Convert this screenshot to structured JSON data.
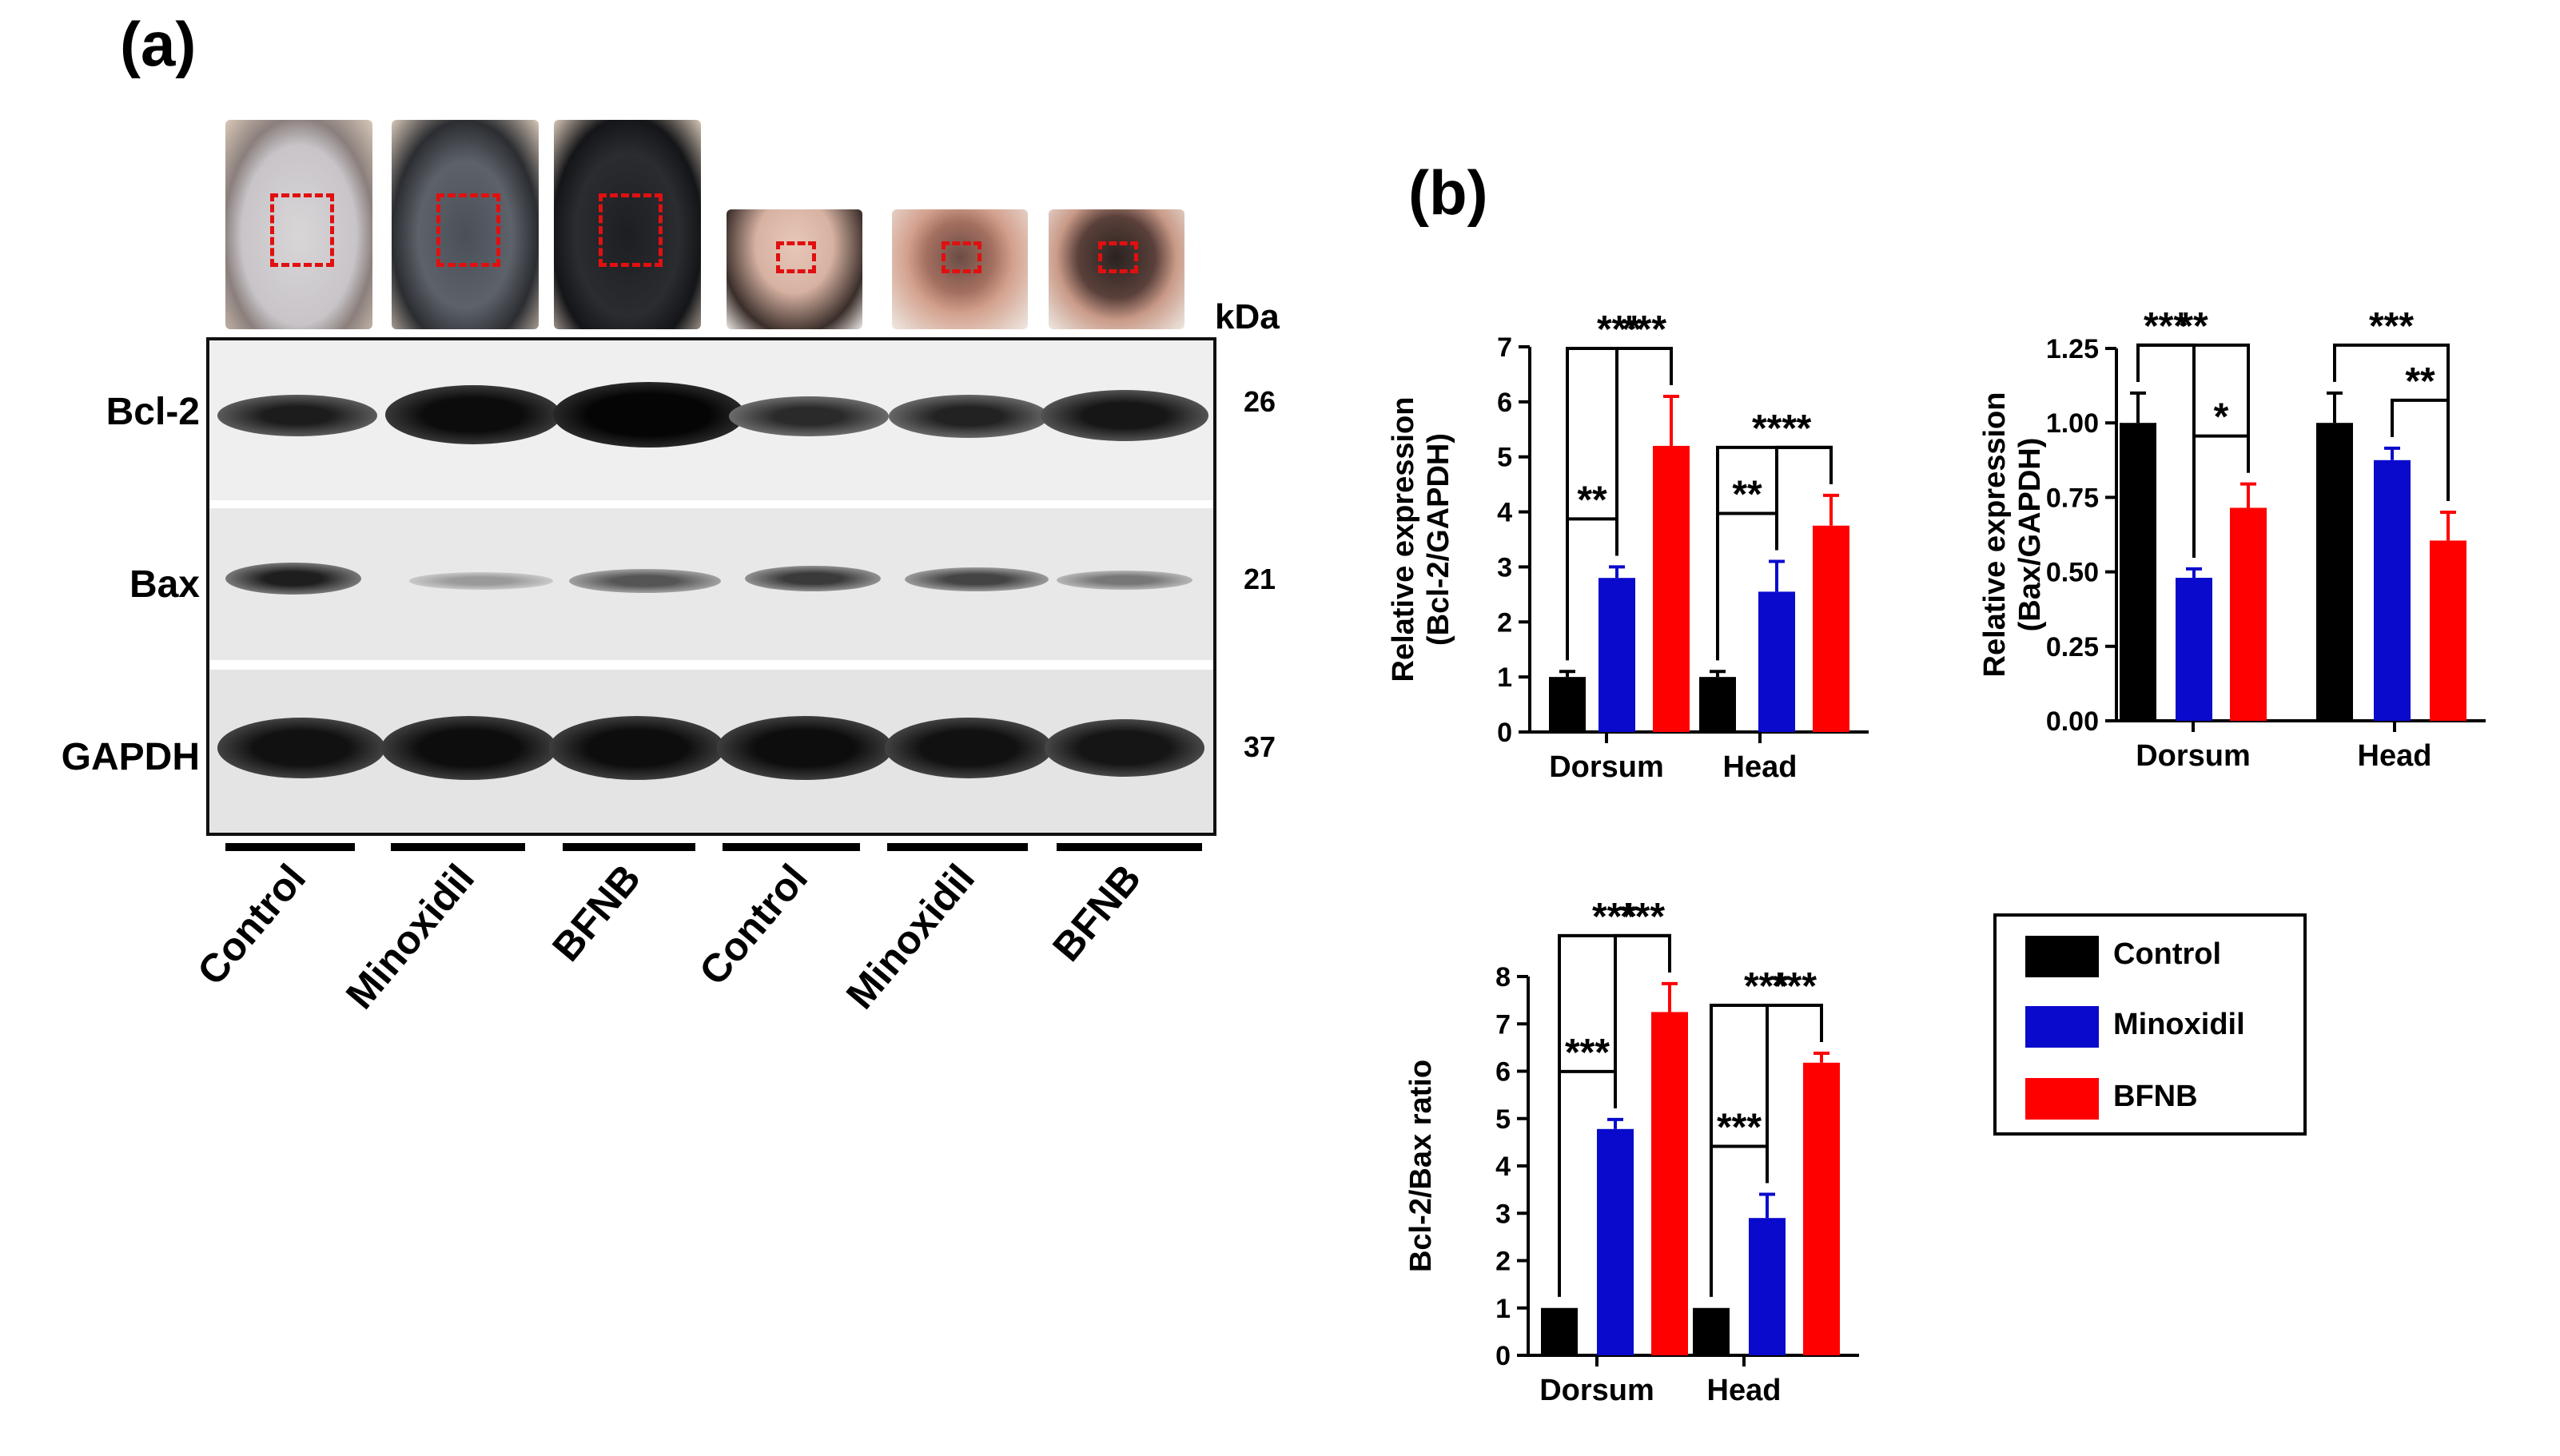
{
  "panel_a": {
    "label": "(a)",
    "kda_label": "kDa",
    "rows": [
      {
        "name": "Bcl-2",
        "mw": "26"
      },
      {
        "name": "Bax",
        "mw": "21"
      },
      {
        "name": "GAPDH",
        "mw": "37"
      }
    ],
    "lanes": [
      "Control",
      "Minoxidil",
      "BFNB",
      "Control",
      "Minoxidil",
      "BFNB"
    ]
  },
  "panel_b": {
    "label": "(b)"
  },
  "colors": {
    "Control": "#000000",
    "Minoxidil": "#0a0acc",
    "BFNB": "#ff0000"
  },
  "legend": [
    {
      "label": "Control",
      "color": "#000000"
    },
    {
      "label": "Minoxidil",
      "color": "#0a0acc"
    },
    {
      "label": "BFNB",
      "color": "#ff0000"
    }
  ],
  "chart_data": [
    {
      "type": "bar",
      "ylabel": "Relative expression\n(Bcl-2/GAPDH)",
      "ylim": [
        0,
        7
      ],
      "yticks": [
        "0",
        "1",
        "2",
        "3",
        "4",
        "5",
        "6",
        "7"
      ],
      "categories": [
        "Dorsum",
        "Head"
      ],
      "series": [
        {
          "name": "Control",
          "values": [
            1.0,
            1.0
          ],
          "errors": [
            0.1,
            0.1
          ]
        },
        {
          "name": "Minoxidil",
          "values": [
            2.8,
            2.55
          ],
          "errors": [
            0.2,
            0.55
          ]
        },
        {
          "name": "BFNB",
          "values": [
            5.2,
            3.75
          ],
          "errors": [
            0.9,
            0.55
          ]
        }
      ],
      "significance": [
        {
          "category": 0,
          "from": 0,
          "to": 2,
          "label": "***"
        },
        {
          "category": 0,
          "from": 1,
          "to": 2,
          "label": "***"
        },
        {
          "category": 0,
          "from": 0,
          "to": 1,
          "label": "**"
        },
        {
          "category": 1,
          "from": 0,
          "to": 2,
          "label": "***"
        },
        {
          "category": 1,
          "from": 1,
          "to": 2,
          "label": "*"
        },
        {
          "category": 1,
          "from": 0,
          "to": 1,
          "label": "**"
        }
      ]
    },
    {
      "type": "bar",
      "ylabel": "Relative expression\n(Bax/GAPDH)",
      "ylim": [
        0,
        1.25
      ],
      "yticks": [
        "0.00",
        "0.25",
        "0.50",
        "0.75",
        "1.00",
        "1.25"
      ],
      "categories": [
        "Dorsum",
        "Head"
      ],
      "series": [
        {
          "name": "Control",
          "values": [
            1.0,
            1.0
          ],
          "errors": [
            0.1,
            0.1
          ]
        },
        {
          "name": "Minoxidil",
          "values": [
            0.48,
            0.875
          ],
          "errors": [
            0.03,
            0.04
          ]
        },
        {
          "name": "BFNB",
          "values": [
            0.715,
            0.605
          ],
          "errors": [
            0.08,
            0.095
          ]
        }
      ],
      "significance": [
        {
          "category": 0,
          "from": 0,
          "to": 2,
          "label": "**"
        },
        {
          "category": 0,
          "from": 0,
          "to": 1,
          "label": "***"
        },
        {
          "category": 0,
          "from": 1,
          "to": 2,
          "label": "*"
        },
        {
          "category": 1,
          "from": 0,
          "to": 2,
          "label": "***"
        },
        {
          "category": 1,
          "from": 1,
          "to": 2,
          "label": "**"
        }
      ]
    },
    {
      "type": "bar",
      "ylabel": "Bcl-2/Bax ratio",
      "ylim": [
        0,
        8
      ],
      "yticks": [
        "0",
        "1",
        "2",
        "3",
        "4",
        "5",
        "6",
        "7",
        "8"
      ],
      "categories": [
        "Dorsum",
        "Head"
      ],
      "series": [
        {
          "name": "Control",
          "values": [
            1.0,
            1.0
          ],
          "errors": [
            0,
            0
          ]
        },
        {
          "name": "Minoxidil",
          "values": [
            4.78,
            2.9
          ],
          "errors": [
            0.2,
            0.5
          ]
        },
        {
          "name": "BFNB",
          "values": [
            7.25,
            6.18
          ],
          "errors": [
            0.6,
            0.2
          ]
        }
      ],
      "significance": [
        {
          "category": 0,
          "from": 0,
          "to": 2,
          "label": "***"
        },
        {
          "category": 0,
          "from": 1,
          "to": 2,
          "label": "***"
        },
        {
          "category": 0,
          "from": 0,
          "to": 1,
          "label": "***"
        },
        {
          "category": 1,
          "from": 0,
          "to": 2,
          "label": "***"
        },
        {
          "category": 1,
          "from": 1,
          "to": 2,
          "label": "***"
        },
        {
          "category": 1,
          "from": 0,
          "to": 1,
          "label": "***"
        }
      ]
    }
  ]
}
